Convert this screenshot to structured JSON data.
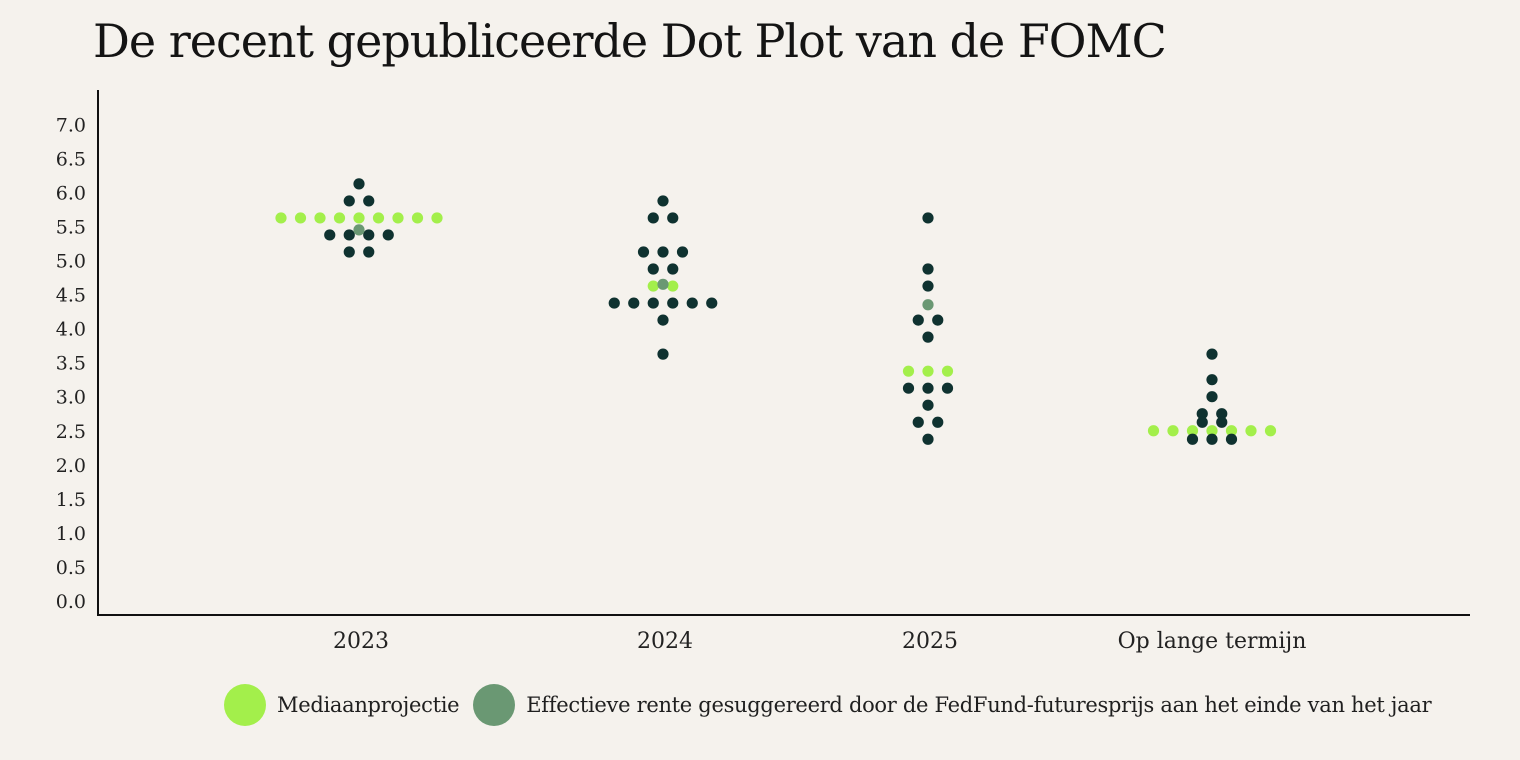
{
  "title": "De recent gepubliceerde Dot Plot van de FOMC",
  "colors": {
    "median": "#a3ef4b",
    "futures": "#6a9873",
    "dots": "#0f3230",
    "axis": "#111111",
    "background": "#f5f2ed"
  },
  "legend": [
    {
      "key": "median",
      "label": "Mediaanprojectie",
      "color_key": "median"
    },
    {
      "key": "futures",
      "label": "Effectieve rente gesuggereerd door de FedFund-futuresprijs aan het einde van het jaar",
      "color_key": "futures"
    }
  ],
  "chart_data": {
    "type": "scatter",
    "title": "De recent gepubliceerde Dot Plot van de FOMC",
    "xlabel": "",
    "ylabel": "",
    "ylim": [
      0,
      7.0
    ],
    "yticks": [
      "0.0",
      "0.5",
      "1.0",
      "1.5",
      "2.0",
      "2.5",
      "3.0",
      "3.5",
      "4.0",
      "4.5",
      "5.0",
      "5.5",
      "6.0",
      "6.5",
      "7.0"
    ],
    "categories": [
      "2023",
      "2024",
      "2025",
      "Op lange termijn"
    ],
    "grid": false,
    "legend_position": "bottom",
    "groups": [
      {
        "category": "2023",
        "participant_dots": [
          {
            "y": 6.125,
            "count": 1
          },
          {
            "y": 5.875,
            "count": 2
          },
          {
            "y": 5.375,
            "count": 4
          },
          {
            "y": 5.125,
            "count": 2
          }
        ],
        "median": {
          "y": 5.625,
          "count": 9
        },
        "futures": 5.45
      },
      {
        "category": "2024",
        "participant_dots": [
          {
            "y": 5.875,
            "count": 1
          },
          {
            "y": 5.625,
            "count": 2
          },
          {
            "y": 5.125,
            "count": 3
          },
          {
            "y": 4.875,
            "count": 2
          },
          {
            "y": 4.375,
            "count": 6
          },
          {
            "y": 4.125,
            "count": 1
          },
          {
            "y": 3.625,
            "count": 1
          }
        ],
        "median": {
          "y": 4.625,
          "count": 2
        },
        "futures": 4.65
      },
      {
        "category": "2025",
        "participant_dots": [
          {
            "y": 5.625,
            "count": 1
          },
          {
            "y": 4.875,
            "count": 1
          },
          {
            "y": 4.625,
            "count": 1
          },
          {
            "y": 4.125,
            "count": 2
          },
          {
            "y": 3.875,
            "count": 1
          },
          {
            "y": 3.125,
            "count": 3
          },
          {
            "y": 2.875,
            "count": 1
          },
          {
            "y": 2.625,
            "count": 2
          },
          {
            "y": 2.375,
            "count": 1
          }
        ],
        "median": {
          "y": 3.375,
          "count": 3
        },
        "futures": 4.35
      },
      {
        "category": "Op lange termijn",
        "participant_dots": [
          {
            "y": 3.625,
            "count": 1
          },
          {
            "y": 3.25,
            "count": 1
          },
          {
            "y": 3.0,
            "count": 1
          },
          {
            "y": 2.75,
            "count": 2
          },
          {
            "y": 2.625,
            "count": 2
          },
          {
            "y": 2.375,
            "count": 3
          }
        ],
        "median": {
          "y": 2.5,
          "count": 7
        },
        "futures": null
      }
    ]
  }
}
